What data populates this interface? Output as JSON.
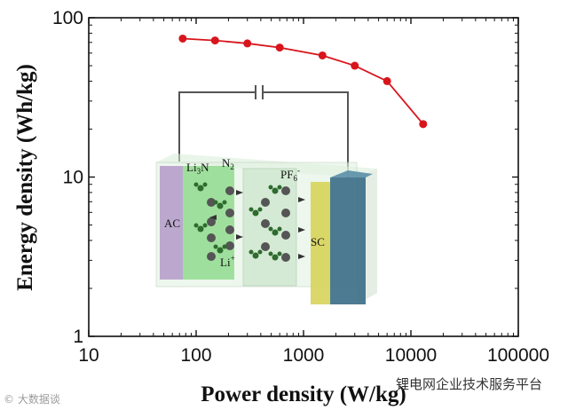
{
  "chart_data": {
    "type": "line",
    "title": "",
    "xlabel": "Power density (W/kg)",
    "ylabel": "Energy density (Wh/kg)",
    "xscale": "log",
    "yscale": "log",
    "xlim": [
      10,
      100000
    ],
    "ylim": [
      1,
      100
    ],
    "x_ticks": [
      "10",
      "100",
      "1000",
      "10000",
      "100000"
    ],
    "y_ticks": [
      "1",
      "10",
      "100"
    ],
    "series": [
      {
        "color": "#d8151c",
        "x": [
          75,
          150,
          300,
          600,
          1500,
          3000,
          6000,
          13000
        ],
        "y": [
          74,
          72,
          69,
          65,
          58,
          50,
          40,
          21.5
        ]
      }
    ],
    "grid": false
  },
  "inset": {
    "labels": {
      "li3n": "Li",
      "li3n_sub": "3",
      "li3n_end": "N",
      "n2": "N",
      "n2_sub": "2",
      "pf6": "PF",
      "pf6_sub": "6",
      "pf6_sup": "-",
      "ac": "AC",
      "li": "Li",
      "li_sup": "+",
      "sc": "SC"
    }
  },
  "watermarks": {
    "left": "© 大数据谈",
    "right": "锂电网企业技术服务平台"
  },
  "colors": {
    "series": "#d8151c",
    "ac_electrode": "#b39ac8",
    "green_electrode": "#7ed47a",
    "separator": "#cfe8cf",
    "sc_electrode": "#d7d35a",
    "current_collector": "#3a6d86"
  }
}
